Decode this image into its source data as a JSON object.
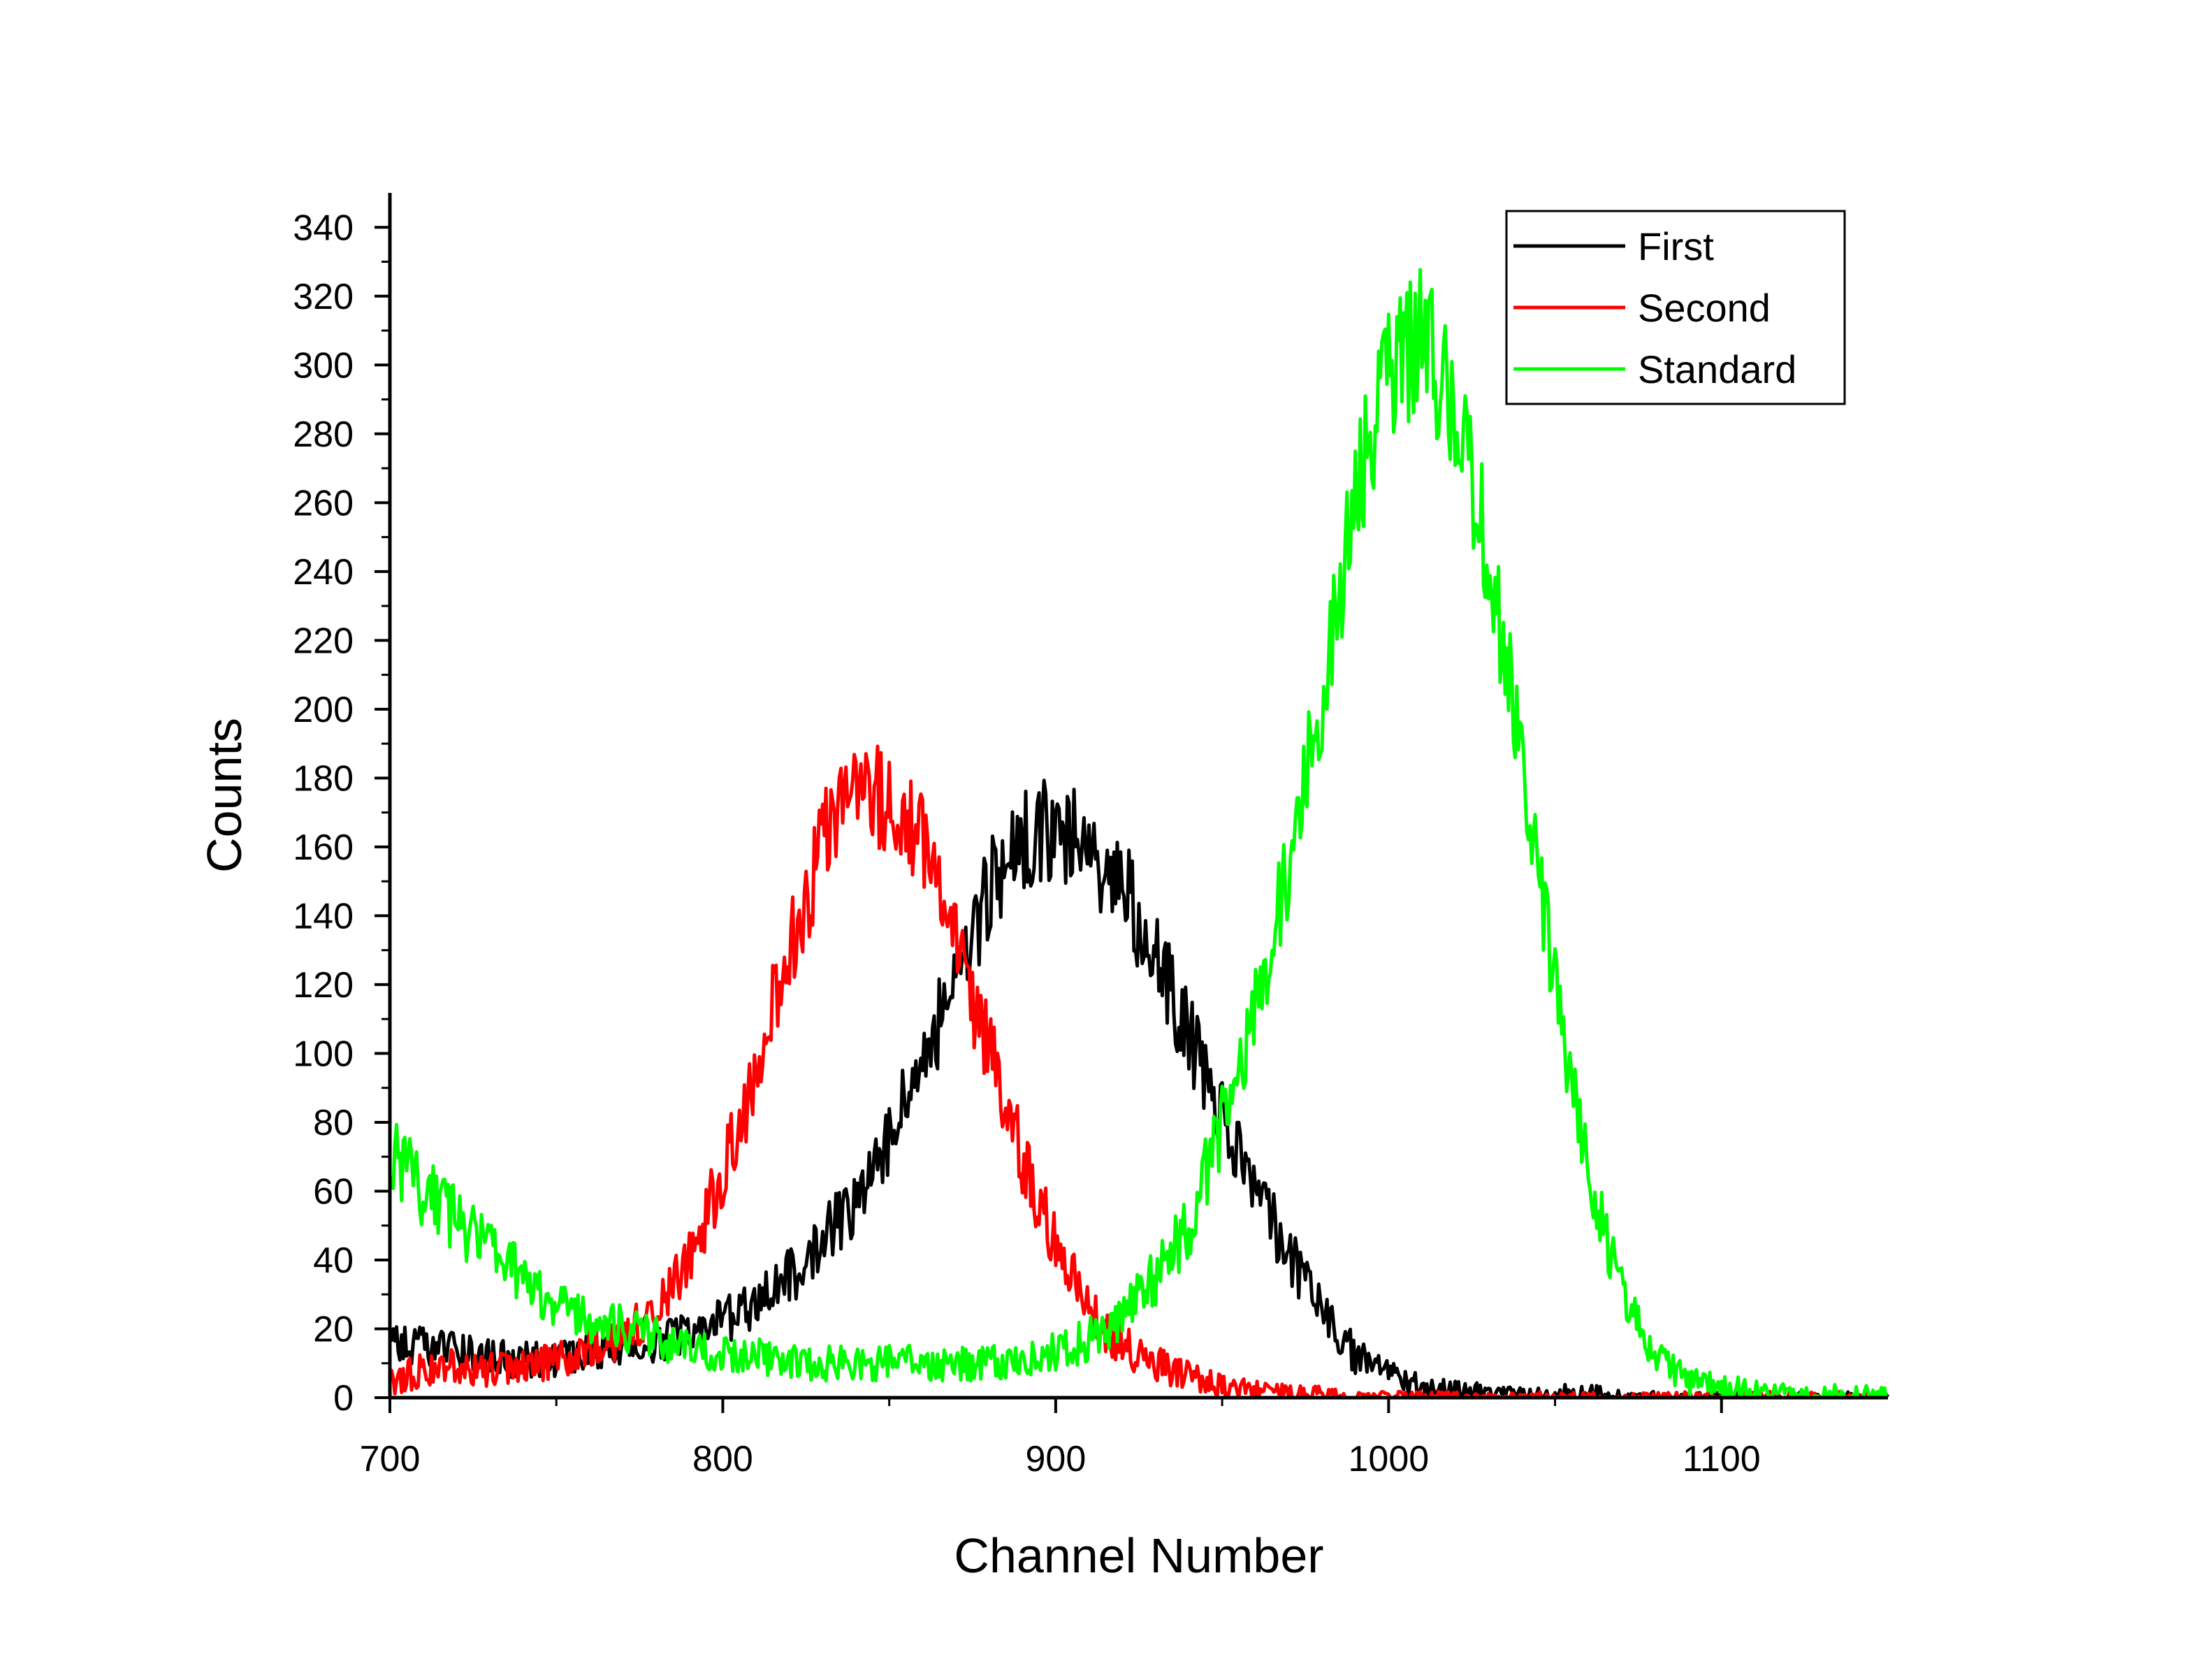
{
  "chart_data": {
    "type": "line",
    "title": "",
    "xlabel": "Channel Number",
    "ylabel": "Counts",
    "xlim": [
      700,
      1150
    ],
    "ylim": [
      0,
      350
    ],
    "xticks": [
      700,
      800,
      900,
      1000,
      1100
    ],
    "xtick_labels": [
      "700",
      "800",
      "900",
      "1000",
      "1100"
    ],
    "yticks": [
      0,
      20,
      40,
      60,
      80,
      100,
      120,
      140,
      160,
      180,
      200,
      220,
      240,
      260,
      280,
      300,
      320,
      340
    ],
    "ytick_labels": [
      "0",
      "20",
      "40",
      "60",
      "80",
      "100",
      "120",
      "140",
      "160",
      "180",
      "200",
      "220",
      "240",
      "260",
      "280",
      "300",
      "320",
      "340"
    ],
    "grid": false,
    "legend": {
      "position": "top-right",
      "entries": [
        "First",
        "Second",
        "Standard"
      ]
    },
    "x": [
      700,
      710,
      720,
      730,
      740,
      750,
      760,
      770,
      780,
      790,
      800,
      810,
      820,
      830,
      840,
      850,
      860,
      870,
      880,
      890,
      900,
      910,
      920,
      930,
      940,
      950,
      960,
      970,
      980,
      990,
      1000,
      1010,
      1020,
      1030,
      1040,
      1050,
      1060,
      1070,
      1080,
      1090,
      1100,
      1110,
      1120,
      1130,
      1140,
      1150
    ],
    "series": [
      {
        "name": "First",
        "color": "#000000",
        "values": [
          18,
          15,
          13,
          12,
          11,
          11,
          13,
          14,
          16,
          19,
          22,
          28,
          35,
          45,
          58,
          75,
          97,
          122,
          148,
          163,
          165,
          158,
          150,
          128,
          105,
          80,
          60,
          42,
          25,
          12,
          6,
          3,
          2,
          1,
          1,
          1,
          1,
          0,
          0,
          0,
          0,
          0,
          0,
          0,
          0,
          0
        ]
      },
      {
        "name": "Second",
        "color": "#ff0000",
        "values": [
          5,
          8,
          9,
          8,
          9,
          11,
          14,
          18,
          25,
          40,
          65,
          95,
          130,
          160,
          175,
          172,
          160,
          130,
          100,
          70,
          45,
          25,
          15,
          10,
          6,
          3,
          2,
          1,
          1,
          0,
          0,
          0,
          0,
          0,
          0,
          0,
          0,
          0,
          0,
          0,
          0,
          0,
          0,
          0,
          0,
          0
        ]
      },
      {
        "name": "Standard",
        "color": "#00ff00",
        "values": [
          72,
          60,
          52,
          42,
          35,
          28,
          23,
          20,
          17,
          15,
          13,
          12,
          11,
          10,
          10,
          10,
          10,
          10,
          10,
          11,
          13,
          17,
          24,
          35,
          50,
          80,
          112,
          155,
          205,
          262,
          298,
          308,
          288,
          245,
          185,
          120,
          65,
          30,
          12,
          5,
          3,
          2,
          1,
          1,
          1,
          1
        ]
      }
    ]
  }
}
